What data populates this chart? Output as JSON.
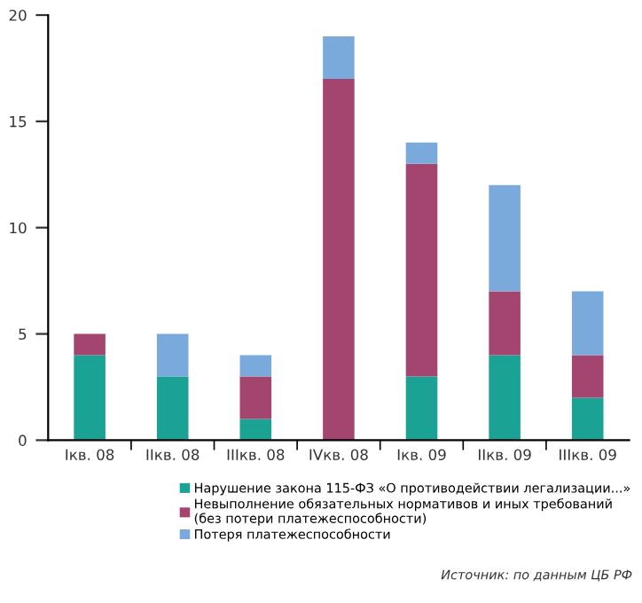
{
  "chart_data": {
    "type": "bar",
    "stacked": true,
    "categories": [
      "Iкв. 08",
      "IIкв. 08",
      "IIIкв. 08",
      "IVкв. 08",
      "Iкв. 09",
      "IIкв. 09",
      "IIIкв. 09"
    ],
    "series": [
      {
        "name": "Нарушение закона 115-ФЗ «О противодействии легализации...»",
        "color": "#1aa394",
        "values": [
          4,
          3,
          1,
          0,
          3,
          4,
          2
        ]
      },
      {
        "name": "Невыполнение обязательных нормативов и иных требований\n(без потери платежеспособности)",
        "color": "#a4456f",
        "values": [
          1,
          0,
          2,
          17,
          10,
          3,
          2
        ]
      },
      {
        "name": "Потеря платежеспособности",
        "color": "#7aaadc",
        "values": [
          0,
          2,
          1,
          2,
          1,
          5,
          3
        ]
      }
    ],
    "ylim": [
      0,
      20
    ],
    "yticks": [
      0,
      5,
      10,
      15,
      20
    ],
    "grid": false,
    "legend": "bottom",
    "annotations": [
      "Источник: по данным ЦБ РФ"
    ]
  }
}
